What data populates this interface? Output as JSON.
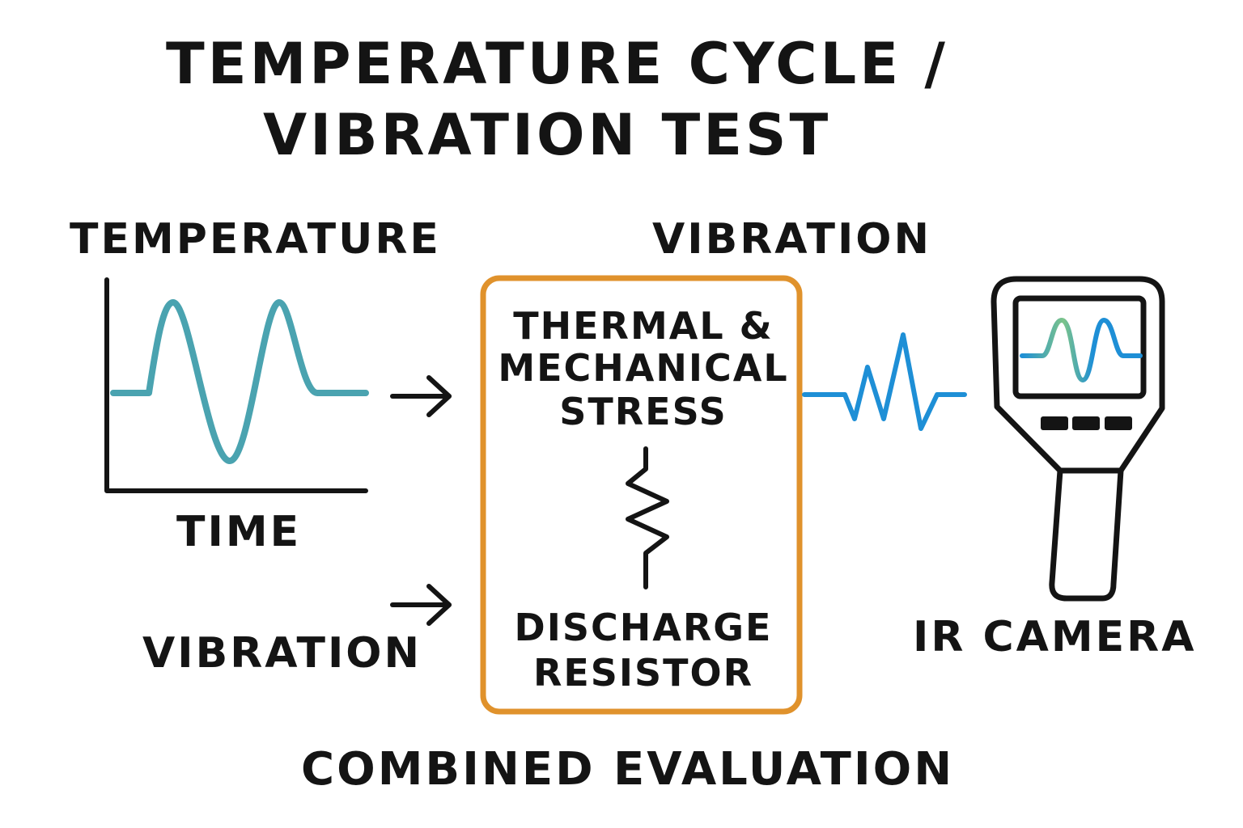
{
  "title": {
    "line1": "TEMPERATURE CYCLE /",
    "line2": "VIBRATION TEST"
  },
  "labels": {
    "temperature": "TEMPERATURE",
    "time": "TIME",
    "vibration_top": "VIBRATION",
    "vibration_left": "VIBRATION",
    "ir_camera": "IR CAMERA",
    "combined_evaluation": "COMBINED EVALUATION"
  },
  "box": {
    "stress_line1": "THERMAL &",
    "stress_line2": "MECHANICAL",
    "stress_line3": "STRESS",
    "resistor_line1": "DISCHARGE",
    "resistor_line2": "RESISTOR"
  },
  "colors": {
    "temperature_wave": "#4aa3b0",
    "box_border": "#e0922c",
    "vibration_signal": "#1e8fd6",
    "screen_wave_start": "#7cc48a",
    "screen_wave_end": "#1e8fd6",
    "ink": "#141414"
  },
  "icons": {
    "arrows": "right-arrow-icon",
    "resistor": "resistor-icon",
    "camera": "ir-camera-icon"
  }
}
